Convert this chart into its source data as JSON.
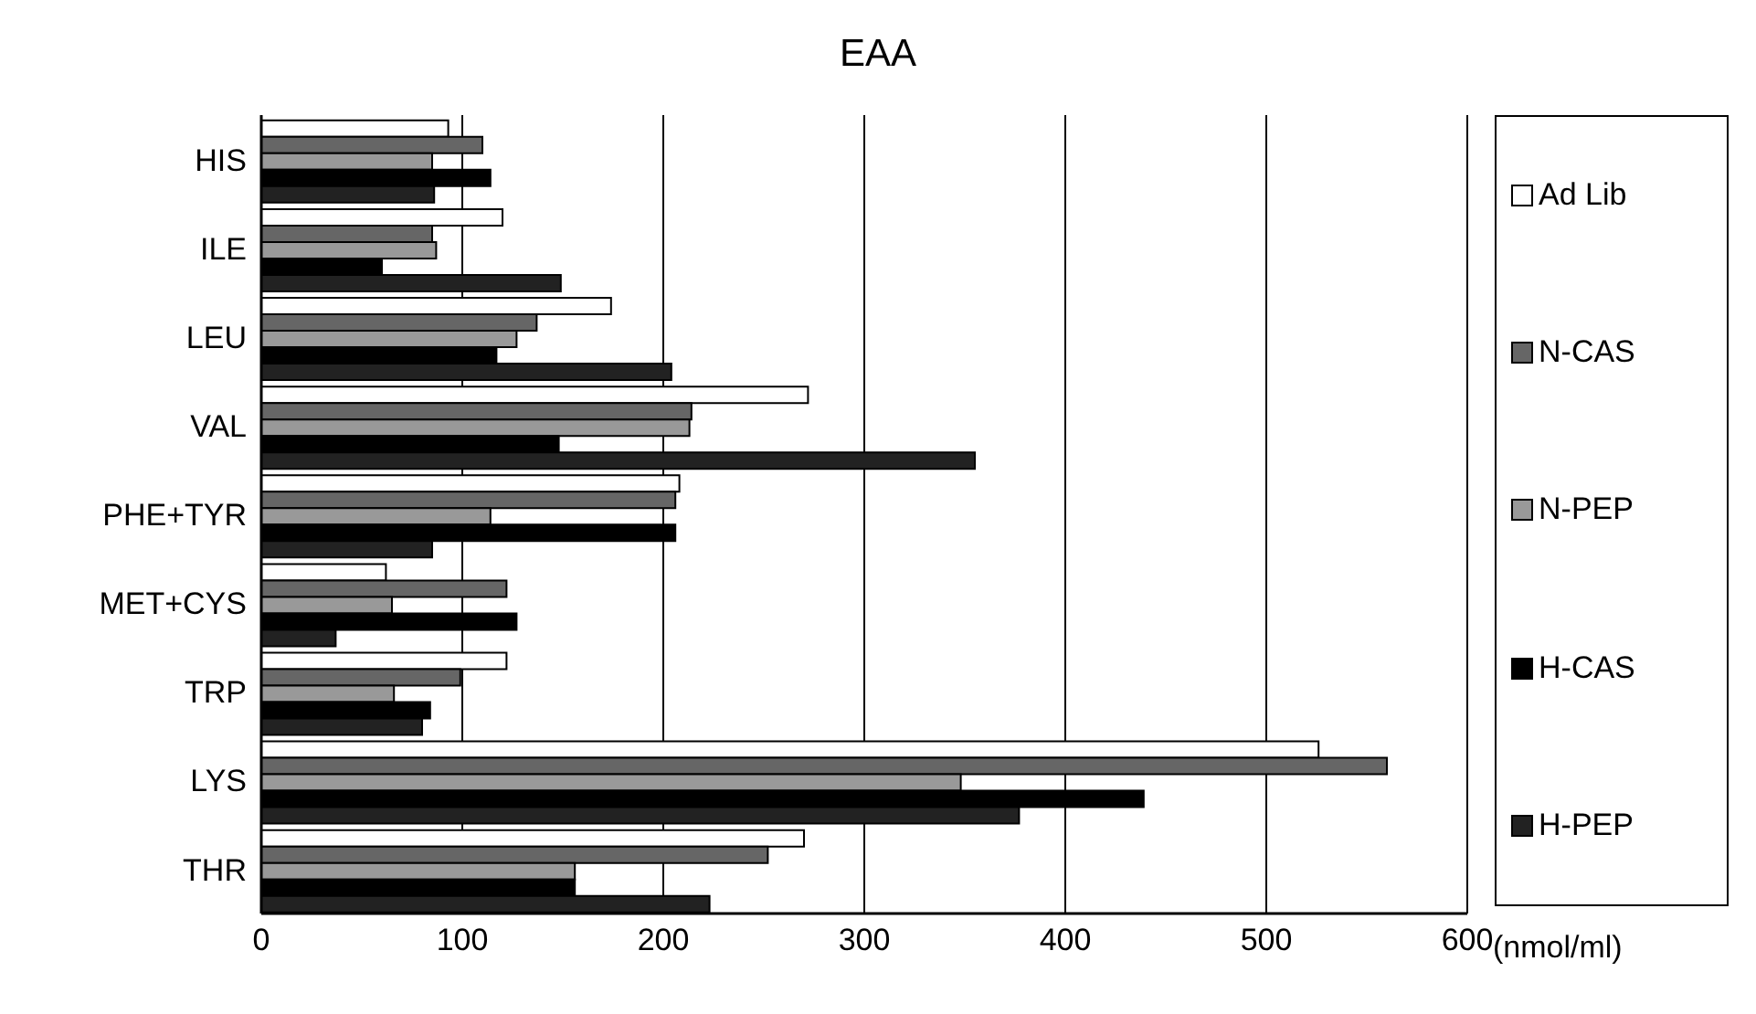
{
  "chart_data": {
    "type": "bar",
    "orientation": "horizontal",
    "title": "EAA",
    "xlabel": "(nmol/ml)",
    "categories": [
      "HIS",
      "ILE",
      "LEU",
      "VAL",
      "PHE+TYR",
      "MET+CYS",
      "TRP",
      "LYS",
      "THR"
    ],
    "series": [
      {
        "name": "Ad Lib",
        "color": "#ffffff",
        "values": [
          93,
          120,
          174,
          272,
          208,
          62,
          122,
          526,
          270
        ]
      },
      {
        "name": "N-CAS",
        "color": "#666666",
        "values": [
          110,
          85,
          137,
          214,
          206,
          122,
          99,
          560,
          252
        ]
      },
      {
        "name": "N-PEP",
        "color": "#999999",
        "values": [
          85,
          87,
          127,
          213,
          114,
          65,
          66,
          348,
          156
        ]
      },
      {
        "name": "H-CAS",
        "color": "#000000",
        "values": [
          114,
          60,
          117,
          148,
          206,
          127,
          84,
          439,
          156
        ]
      },
      {
        "name": "H-PEP",
        "color": "#222222",
        "values": [
          86,
          149,
          204,
          355,
          85,
          37,
          80,
          377,
          223
        ]
      }
    ],
    "xlim": [
      0,
      600
    ],
    "xticks": [
      0,
      100,
      200,
      300,
      400,
      500,
      600
    ],
    "grid": "x",
    "legend": "right"
  }
}
